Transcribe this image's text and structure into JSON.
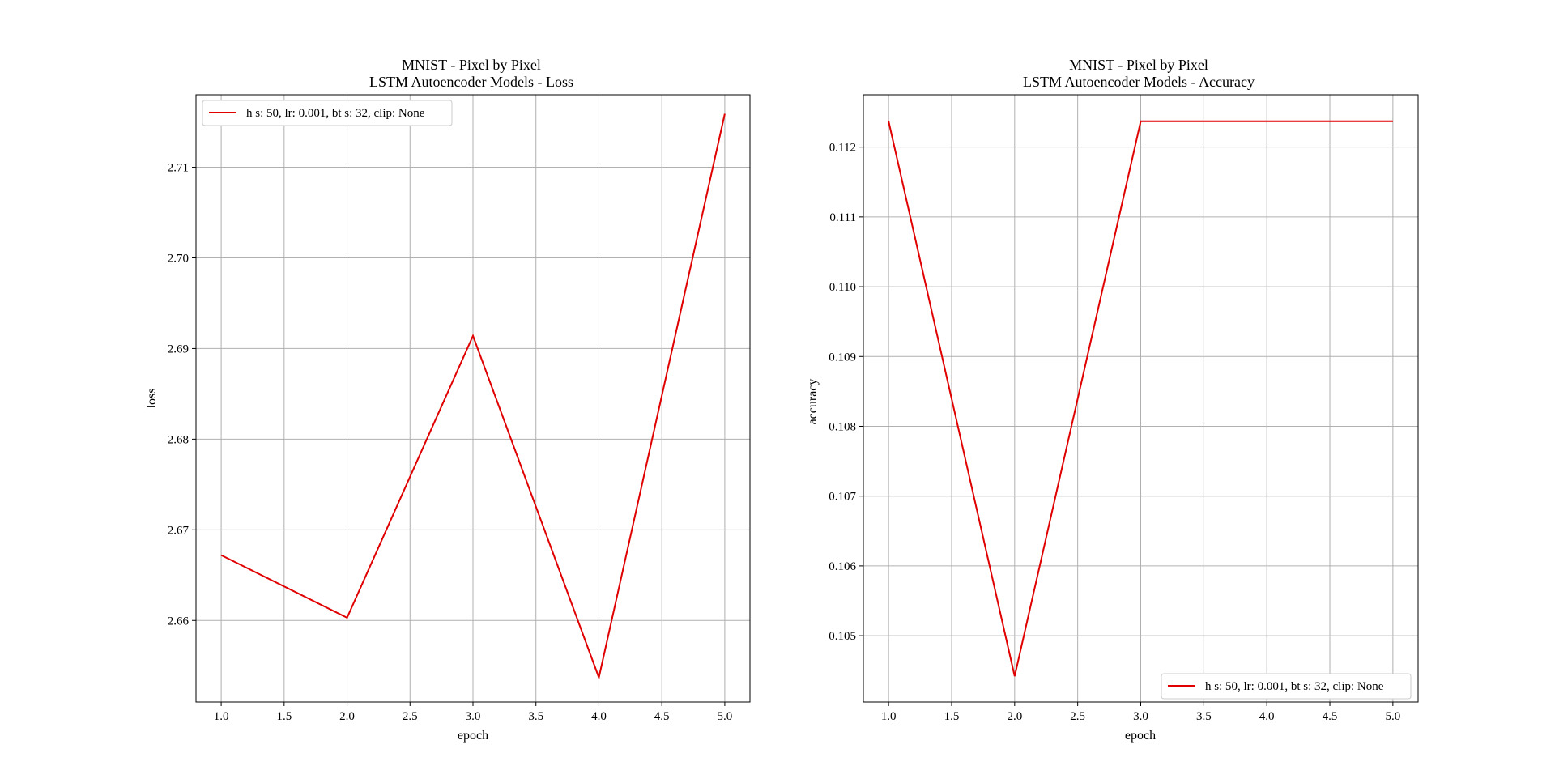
{
  "figure": {
    "background": "#ffffff"
  },
  "chart_data": [
    {
      "type": "line",
      "title_line1": "MNIST - Pixel by Pixel",
      "title_line2": "LSTM Autoencoder Models - Loss",
      "xlabel": "epoch",
      "ylabel": "loss",
      "xlim": [
        0.8,
        5.2
      ],
      "ylim": [
        2.651,
        2.718
      ],
      "xticks": [
        1.0,
        1.5,
        2.0,
        2.5,
        3.0,
        3.5,
        4.0,
        4.5,
        5.0
      ],
      "xtick_labels": [
        "1.0",
        "1.5",
        "2.0",
        "2.5",
        "3.0",
        "3.5",
        "4.0",
        "4.5",
        "5.0"
      ],
      "yticks": [
        2.66,
        2.67,
        2.68,
        2.69,
        2.7,
        2.71
      ],
      "ytick_labels": [
        "2.66",
        "2.67",
        "2.68",
        "2.69",
        "2.70",
        "2.71"
      ],
      "grid": true,
      "legend_position": "upper-left",
      "series": [
        {
          "name": "h s: 50, lr: 0.001, bt s: 32, clip: None",
          "color": "#e00000",
          "x": [
            1.0,
            2.0,
            3.0,
            4.0,
            5.0
          ],
          "y": [
            2.6672,
            2.6603,
            2.6914,
            2.6537,
            2.7159
          ]
        }
      ]
    },
    {
      "type": "line",
      "title_line1": "MNIST - Pixel by Pixel",
      "title_line2": "LSTM Autoencoder Models - Accuracy",
      "xlabel": "epoch",
      "ylabel": "accuracy",
      "xlim": [
        0.8,
        5.2
      ],
      "ylim": [
        0.10405,
        0.11275
      ],
      "xticks": [
        1.0,
        1.5,
        2.0,
        2.5,
        3.0,
        3.5,
        4.0,
        4.5,
        5.0
      ],
      "xtick_labels": [
        "1.0",
        "1.5",
        "2.0",
        "2.5",
        "3.0",
        "3.5",
        "4.0",
        "4.5",
        "5.0"
      ],
      "yticks": [
        0.105,
        0.106,
        0.107,
        0.108,
        0.109,
        0.11,
        0.111,
        0.112
      ],
      "ytick_labels": [
        "0.105",
        "0.106",
        "0.107",
        "0.108",
        "0.109",
        "0.110",
        "0.111",
        "0.112"
      ],
      "grid": true,
      "legend_position": "lower-right",
      "series": [
        {
          "name": "h s: 50, lr: 0.001, bt s: 32, clip: None",
          "color": "#e00000",
          "x": [
            1.0,
            2.0,
            3.0,
            4.0,
            5.0
          ],
          "y": [
            0.11237,
            0.10442,
            0.11237,
            0.11237,
            0.11237
          ]
        }
      ]
    }
  ]
}
